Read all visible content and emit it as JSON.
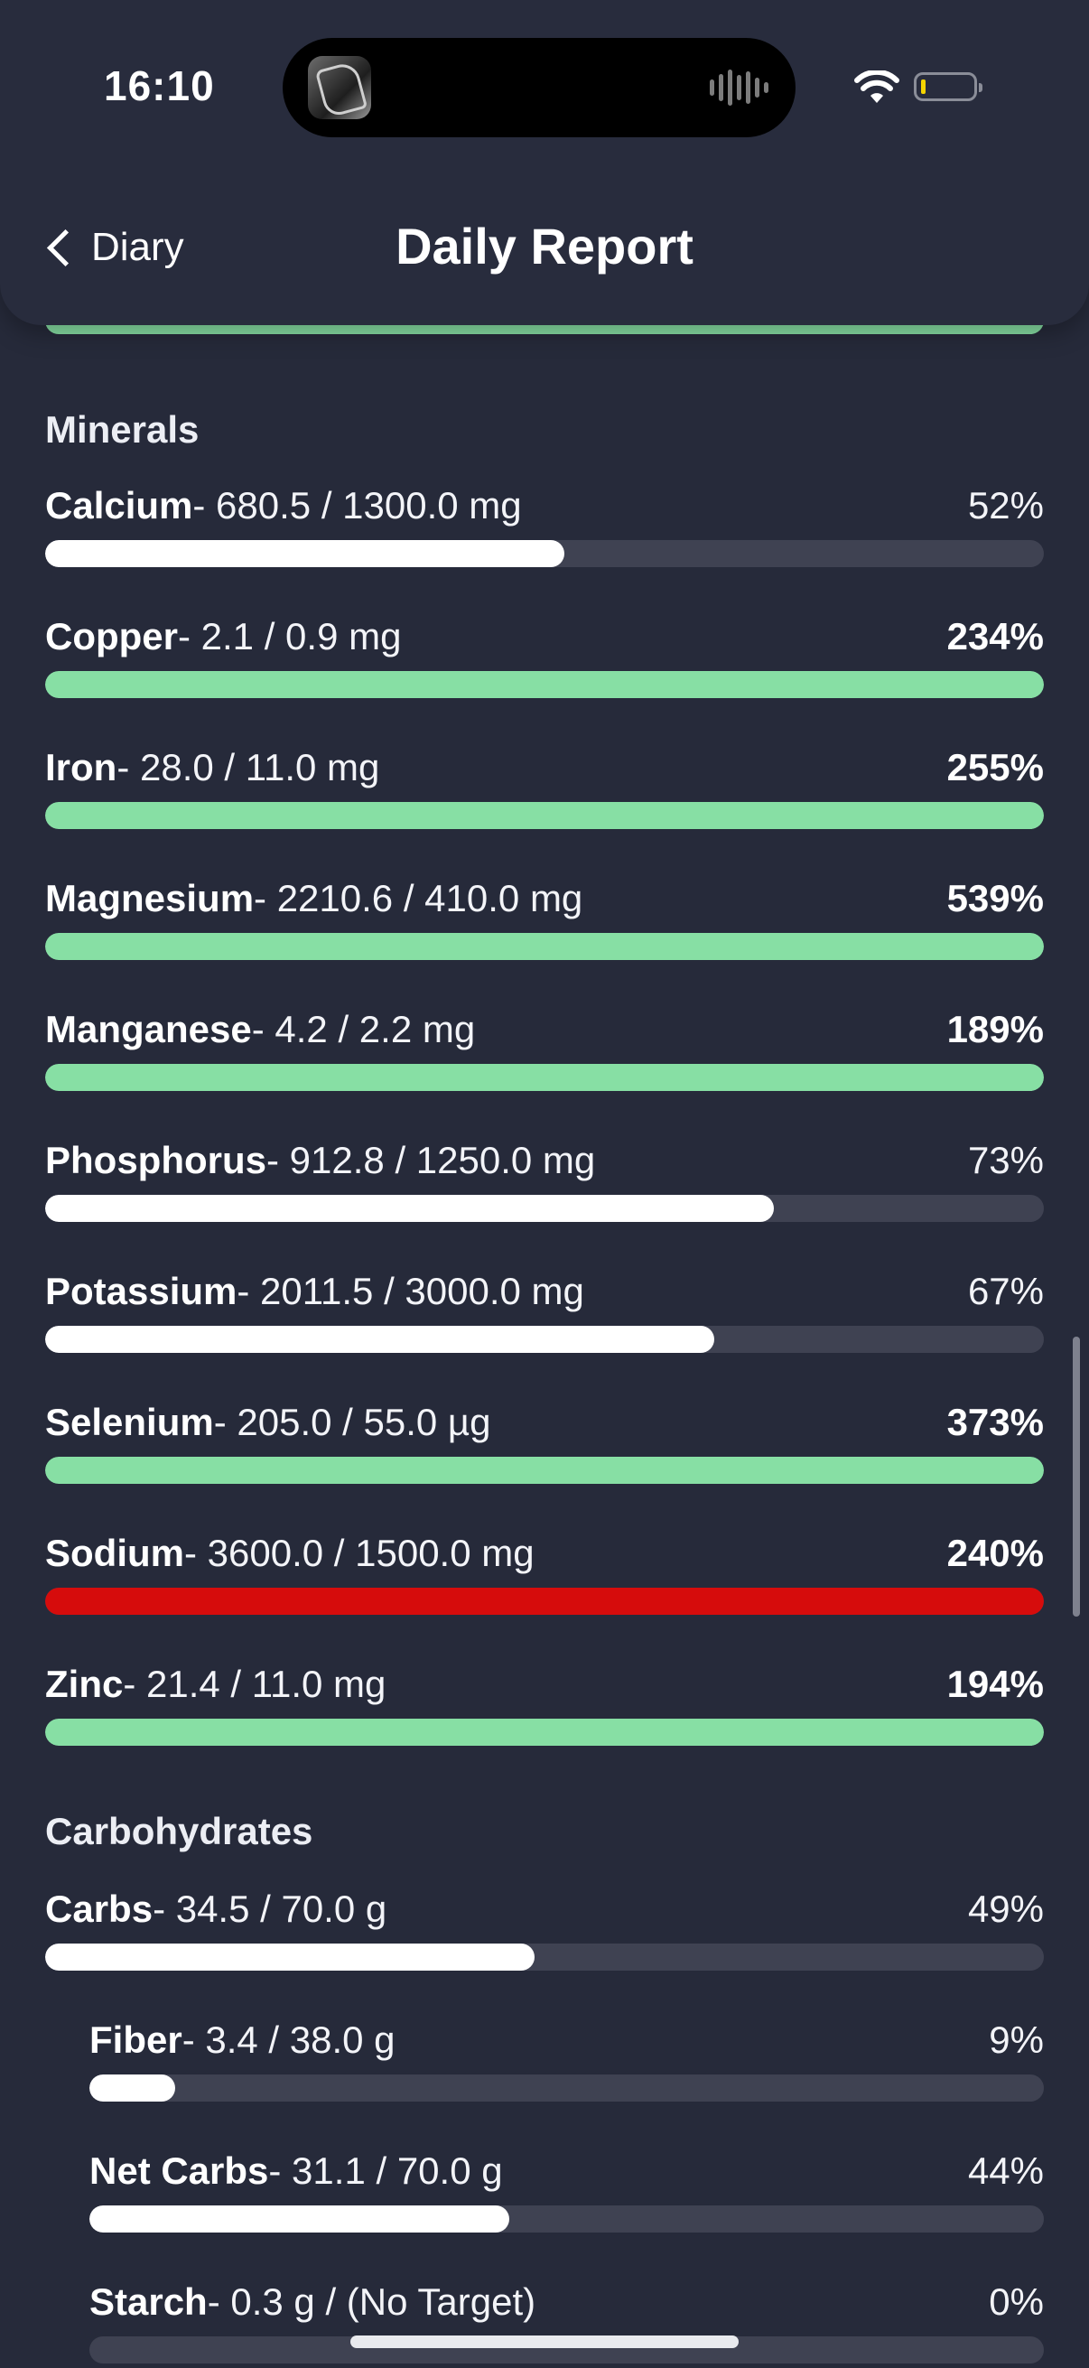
{
  "status_bar": {
    "time": "16:10",
    "battery_level": 0.08,
    "battery_color": "#f5d400"
  },
  "nav": {
    "back_label": "Diary",
    "title": "Daily Report"
  },
  "colors": {
    "good": "#87dfa4",
    "bad": "#d60c0c",
    "neutral": "#ffffff",
    "track": "#3f4252",
    "background": "#262a3a"
  },
  "minerals": {
    "title": "Minerals",
    "items": [
      {
        "name": "Calcium",
        "detail": "- 680.5 / 1300.0 mg",
        "percent": "52%",
        "progress": 0.52,
        "status": "neutral"
      },
      {
        "name": "Copper",
        "detail": "- 2.1 / 0.9 mg",
        "percent": "234%",
        "progress": 1.0,
        "status": "good"
      },
      {
        "name": "Iron",
        "detail": "- 28.0 / 11.0 mg",
        "percent": "255%",
        "progress": 1.0,
        "status": "good"
      },
      {
        "name": "Magnesium",
        "detail": "- 2210.6 / 410.0 mg",
        "percent": "539%",
        "progress": 1.0,
        "status": "good"
      },
      {
        "name": "Manganese",
        "detail": "- 4.2 / 2.2 mg",
        "percent": "189%",
        "progress": 1.0,
        "status": "good"
      },
      {
        "name": "Phosphorus",
        "detail": "- 912.8 / 1250.0 mg",
        "percent": "73%",
        "progress": 0.73,
        "status": "neutral"
      },
      {
        "name": "Potassium",
        "detail": "- 2011.5 / 3000.0 mg",
        "percent": "67%",
        "progress": 0.67,
        "status": "neutral"
      },
      {
        "name": "Selenium",
        "detail": "- 205.0 / 55.0 µg",
        "percent": "373%",
        "progress": 1.0,
        "status": "good"
      },
      {
        "name": "Sodium",
        "detail": "- 3600.0 / 1500.0 mg",
        "percent": "240%",
        "progress": 1.0,
        "status": "bad"
      },
      {
        "name": "Zinc",
        "detail": "- 21.4 / 11.0 mg",
        "percent": "194%",
        "progress": 1.0,
        "status": "good"
      }
    ]
  },
  "carbohydrates": {
    "title": "Carbohydrates",
    "items": [
      {
        "name": "Carbs",
        "detail": "- 34.5 / 70.0 g",
        "percent": "49%",
        "progress": 0.49,
        "status": "neutral"
      },
      {
        "name": "Fiber",
        "detail": "- 3.4 / 38.0 g",
        "percent": "9%",
        "progress": 0.09,
        "status": "neutral"
      },
      {
        "name": "Net Carbs",
        "detail": "- 31.1 / 70.0 g",
        "percent": "44%",
        "progress": 0.44,
        "status": "neutral"
      },
      {
        "name": "Starch",
        "detail": "- 0.3 g / (No Target)",
        "percent": "0%",
        "progress": 0.0,
        "status": "neutral"
      }
    ]
  }
}
